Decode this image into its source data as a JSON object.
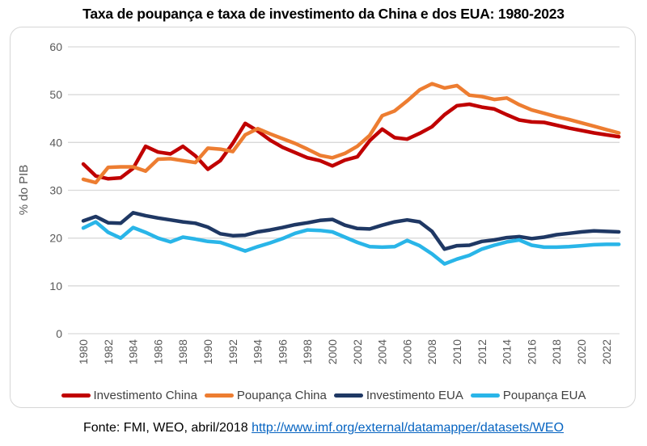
{
  "title": "Taxa de poupança e taxa de investimento da China e dos EUA: 1980-2023",
  "footer": {
    "source_text": "Fonte: FMI, WEO, abril/2018",
    "link_text": "http://www.imf.org/external/datamapper/datasets/WEO"
  },
  "chart_data": {
    "type": "line",
    "title": "Taxa de poupança e taxa de investimento da China e dos EUA: 1980-2023",
    "xlabel": "",
    "ylabel": "% do PIB",
    "ylim": [
      0,
      60
    ],
    "yticks": [
      0,
      10,
      20,
      30,
      40,
      50,
      60
    ],
    "xtick_labels": [
      "1980",
      "1982",
      "1984",
      "1986",
      "1988",
      "1990",
      "1992",
      "1994",
      "1996",
      "1998",
      "2000",
      "2002",
      "2004",
      "2006",
      "2008",
      "2010",
      "2012",
      "2014",
      "2016",
      "2018",
      "2020",
      "2022"
    ],
    "grid": true,
    "legend_position": "bottom",
    "x": [
      1980,
      1981,
      1982,
      1983,
      1984,
      1985,
      1986,
      1987,
      1988,
      1989,
      1990,
      1991,
      1992,
      1993,
      1994,
      1995,
      1996,
      1997,
      1998,
      1999,
      2000,
      2001,
      2002,
      2003,
      2004,
      2005,
      2006,
      2007,
      2008,
      2009,
      2010,
      2011,
      2012,
      2013,
      2014,
      2015,
      2016,
      2017,
      2018,
      2019,
      2020,
      2021,
      2022,
      2023
    ],
    "series": [
      {
        "name": "Investimento China",
        "color": "#C00000",
        "values": [
          35.5,
          33.0,
          32.4,
          32.6,
          34.6,
          39.2,
          38.0,
          37.6,
          39.2,
          37.2,
          34.4,
          36.2,
          39.8,
          44.0,
          42.4,
          40.5,
          39.0,
          37.9,
          36.8,
          36.2,
          35.1,
          36.3,
          37.0,
          40.4,
          42.8,
          41.0,
          40.7,
          41.9,
          43.3,
          45.8,
          47.7,
          48.0,
          47.4,
          47.0,
          45.8,
          44.7,
          44.3,
          44.2,
          43.6,
          43.0,
          42.5,
          42.0,
          41.6,
          41.2
        ]
      },
      {
        "name": "Poupança China",
        "color": "#ED7D31",
        "values": [
          32.3,
          31.6,
          34.8,
          34.9,
          34.9,
          34.0,
          36.5,
          36.6,
          36.2,
          35.8,
          38.8,
          38.6,
          38.1,
          41.6,
          42.9,
          41.8,
          40.8,
          39.8,
          38.6,
          37.3,
          36.8,
          37.7,
          39.2,
          41.5,
          45.6,
          46.6,
          48.7,
          51.0,
          52.3,
          51.4,
          51.9,
          49.9,
          49.6,
          49.0,
          49.3,
          47.9,
          46.8,
          46.1,
          45.4,
          44.8,
          44.1,
          43.4,
          42.7,
          42.0
        ]
      },
      {
        "name": "Investimento EUA",
        "color": "#1F3864",
        "values": [
          23.6,
          24.5,
          23.2,
          23.1,
          25.3,
          24.7,
          24.2,
          23.8,
          23.4,
          23.1,
          22.3,
          20.9,
          20.5,
          20.6,
          21.3,
          21.7,
          22.2,
          22.8,
          23.2,
          23.7,
          23.9,
          22.7,
          22.0,
          21.9,
          22.7,
          23.4,
          23.8,
          23.4,
          21.4,
          17.7,
          18.4,
          18.5,
          19.3,
          19.6,
          20.1,
          20.3,
          19.9,
          20.2,
          20.7,
          21.0,
          21.3,
          21.5,
          21.4,
          21.3
        ]
      },
      {
        "name": "Poupança EUA",
        "color": "#29B5E8",
        "values": [
          22.1,
          23.4,
          21.2,
          20.0,
          22.2,
          21.2,
          20.0,
          19.2,
          20.2,
          19.8,
          19.3,
          19.1,
          18.2,
          17.3,
          18.2,
          19.0,
          19.9,
          21.0,
          21.7,
          21.6,
          21.3,
          20.2,
          19.1,
          18.2,
          18.1,
          18.2,
          19.5,
          18.4,
          16.7,
          14.6,
          15.6,
          16.4,
          17.7,
          18.5,
          19.2,
          19.6,
          18.5,
          18.1,
          18.1,
          18.2,
          18.4,
          18.6,
          18.7,
          18.7
        ]
      }
    ]
  }
}
